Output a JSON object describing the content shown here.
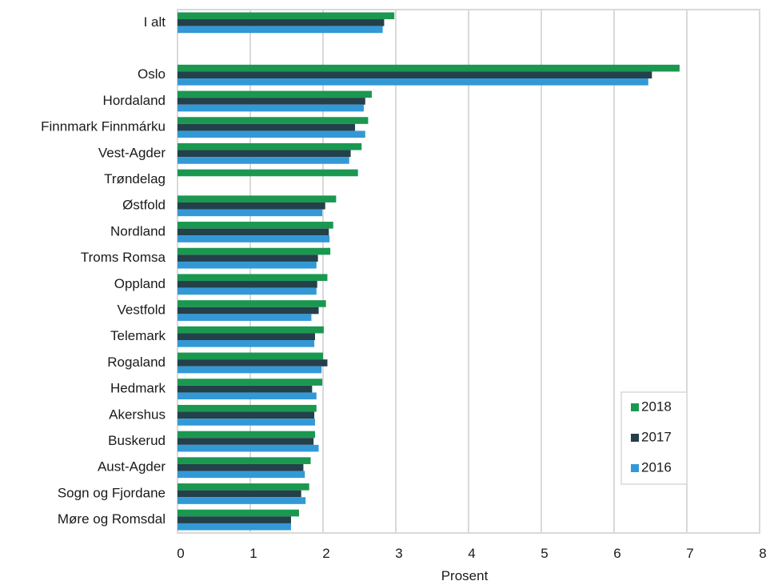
{
  "chart_data": {
    "type": "bar",
    "orientation": "horizontal",
    "xlabel": "Prosent",
    "xlim": [
      0,
      8
    ],
    "xticks": [
      0,
      1,
      2,
      3,
      4,
      5,
      6,
      7,
      8
    ],
    "grid": true,
    "legend_position": "bottom-right",
    "categories": [
      "I alt",
      "",
      "Oslo",
      "Hordaland",
      "Finnmark Finnmárku",
      "Vest-Agder",
      "Trøndelag",
      "Østfold",
      "Nordland",
      "Troms Romsa",
      "Oppland",
      "Vestfold",
      "Telemark",
      "Rogaland",
      "Hedmark",
      "Akershus",
      "Buskerud",
      "Aust-Agder",
      "Sogn og Fjordane",
      "Møre og Romsdal"
    ],
    "series": [
      {
        "name": "2018",
        "color": "#1a9850",
        "values": [
          2.98,
          null,
          6.9,
          2.67,
          2.62,
          2.53,
          2.48,
          2.18,
          2.14,
          2.1,
          2.06,
          2.04,
          2.01,
          2.0,
          1.99,
          1.91,
          1.89,
          1.83,
          1.81,
          1.67
        ]
      },
      {
        "name": "2017",
        "color": "#24404a",
        "values": [
          2.84,
          null,
          6.52,
          2.58,
          2.44,
          2.38,
          null,
          2.03,
          2.08,
          1.93,
          1.92,
          1.94,
          1.89,
          2.06,
          1.85,
          1.88,
          1.87,
          1.73,
          1.7,
          1.56
        ]
      },
      {
        "name": "2016",
        "color": "#3399d6",
        "values": [
          2.82,
          null,
          6.47,
          2.56,
          2.58,
          2.36,
          null,
          1.99,
          2.09,
          1.91,
          1.91,
          1.84,
          1.88,
          1.98,
          1.91,
          1.89,
          1.94,
          1.75,
          1.76,
          1.56
        ]
      }
    ]
  }
}
